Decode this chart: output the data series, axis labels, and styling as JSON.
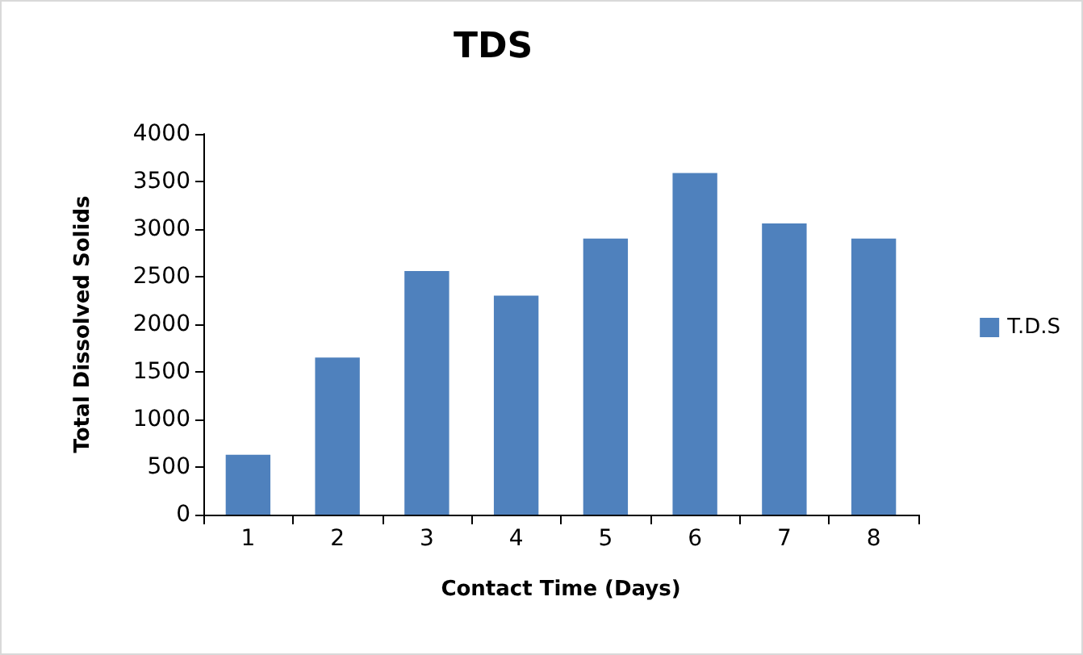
{
  "chart_data": {
    "type": "bar",
    "title": "TDS",
    "xlabel": "Contact Time (Days)",
    "ylabel": "Total Dissolved Solids",
    "categories": [
      "1",
      "2",
      "3",
      "4",
      "5",
      "6",
      "7",
      "8"
    ],
    "series": [
      {
        "name": "T.D.S",
        "color": "#4f81bd",
        "values": [
          630,
          1650,
          2560,
          2300,
          2900,
          3590,
          3060,
          2900
        ]
      }
    ],
    "ylim": [
      0,
      4000
    ],
    "yticks": [
      0,
      500,
      1000,
      1500,
      2000,
      2500,
      3000,
      3500,
      4000
    ],
    "grid": false,
    "legend": "right"
  }
}
